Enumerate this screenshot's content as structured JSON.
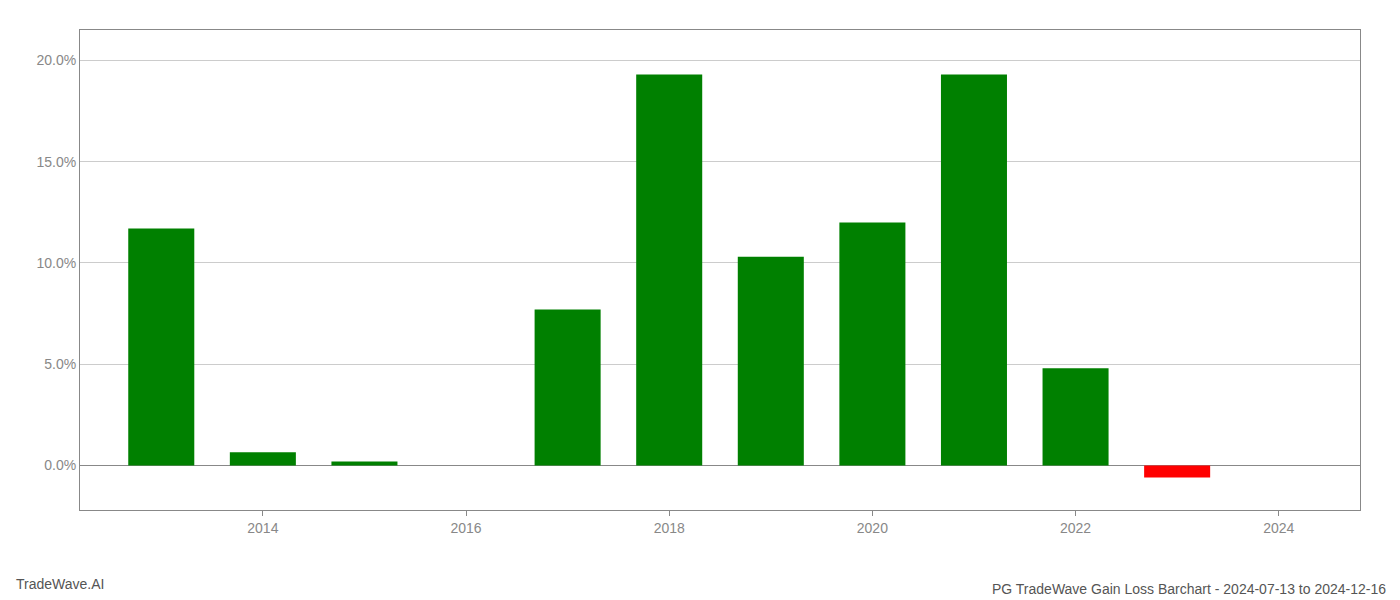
{
  "chart_data": {
    "type": "bar",
    "title": "PG TradeWave Gain Loss Barchart - 2024-07-13 to 2024-12-16",
    "annotations": [
      "TradeWave.AI"
    ],
    "x": [
      2013,
      2014,
      2015,
      2017,
      2018,
      2019,
      2020,
      2021,
      2022,
      2023
    ],
    "values": [
      0.117,
      0.0065,
      0.002,
      0.077,
      0.193,
      0.103,
      0.12,
      0.193,
      0.048,
      -0.006
    ],
    "colors": [
      "#008000",
      "#008000",
      "#008000",
      "#008000",
      "#008000",
      "#008000",
      "#008000",
      "#008000",
      "#008000",
      "#ff0000"
    ],
    "xlim": [
      2012.2,
      2024.8
    ],
    "xticks": [
      2014,
      2016,
      2018,
      2020,
      2022,
      2024
    ],
    "ylim": [
      -0.022,
      0.215
    ],
    "yticks": [
      {
        "value": 0.0,
        "label": "0.0%"
      },
      {
        "value": 0.05,
        "label": "5.0%"
      },
      {
        "value": 0.1,
        "label": "10.0%"
      },
      {
        "value": 0.15,
        "label": "15.0%"
      },
      {
        "value": 0.2,
        "label": "20.0%"
      }
    ],
    "grid": true
  }
}
